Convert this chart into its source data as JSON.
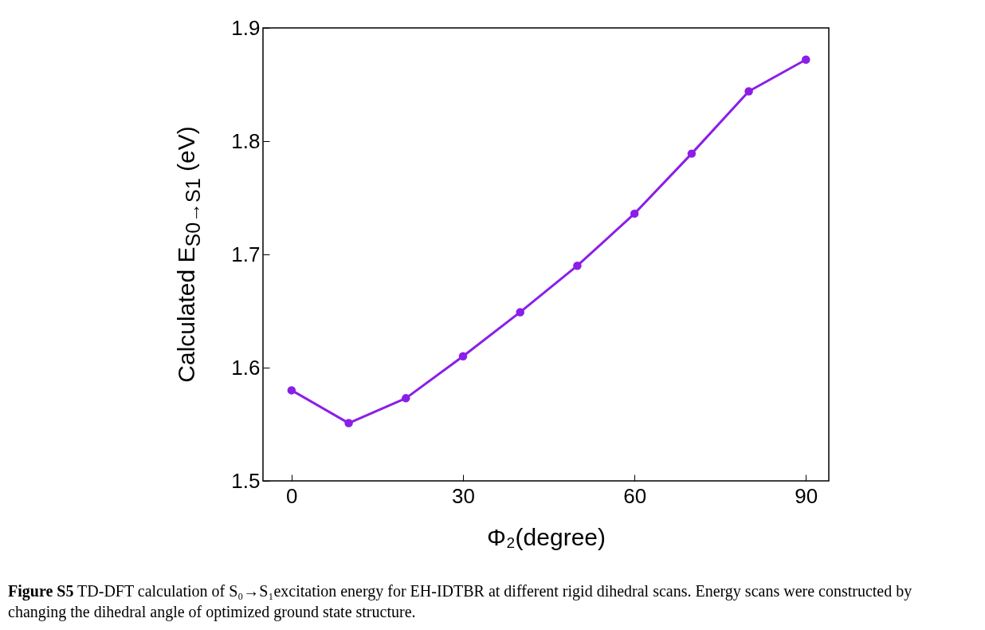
{
  "chart_data": {
    "type": "line",
    "xlabel": "Φ₂(degree)",
    "ylabel": "Calculated E$_{S0→S1}$ (eV)",
    "x": [
      0,
      10,
      20,
      30,
      40,
      50,
      60,
      70,
      80,
      90
    ],
    "values": [
      1.58,
      1.551,
      1.573,
      1.61,
      1.649,
      1.69,
      1.736,
      1.789,
      1.844,
      1.872
    ],
    "color": "#8b1ee8",
    "marker": "circle",
    "line_style": "solid",
    "xlim": [
      -5,
      94
    ],
    "ylim": [
      1.5,
      1.9
    ],
    "xticks": [
      0,
      30,
      60,
      90
    ],
    "yticks": [
      1.5,
      1.6,
      1.7,
      1.8,
      1.9
    ],
    "annotations": [
      "Figure S5 TD-DFT calculation of S₀→S₁excitation energy for EH-IDTBR at different rigid dihedral scans. Energy scans were constructed by changing the dihedral angle of optimized ground state structure."
    ]
  }
}
